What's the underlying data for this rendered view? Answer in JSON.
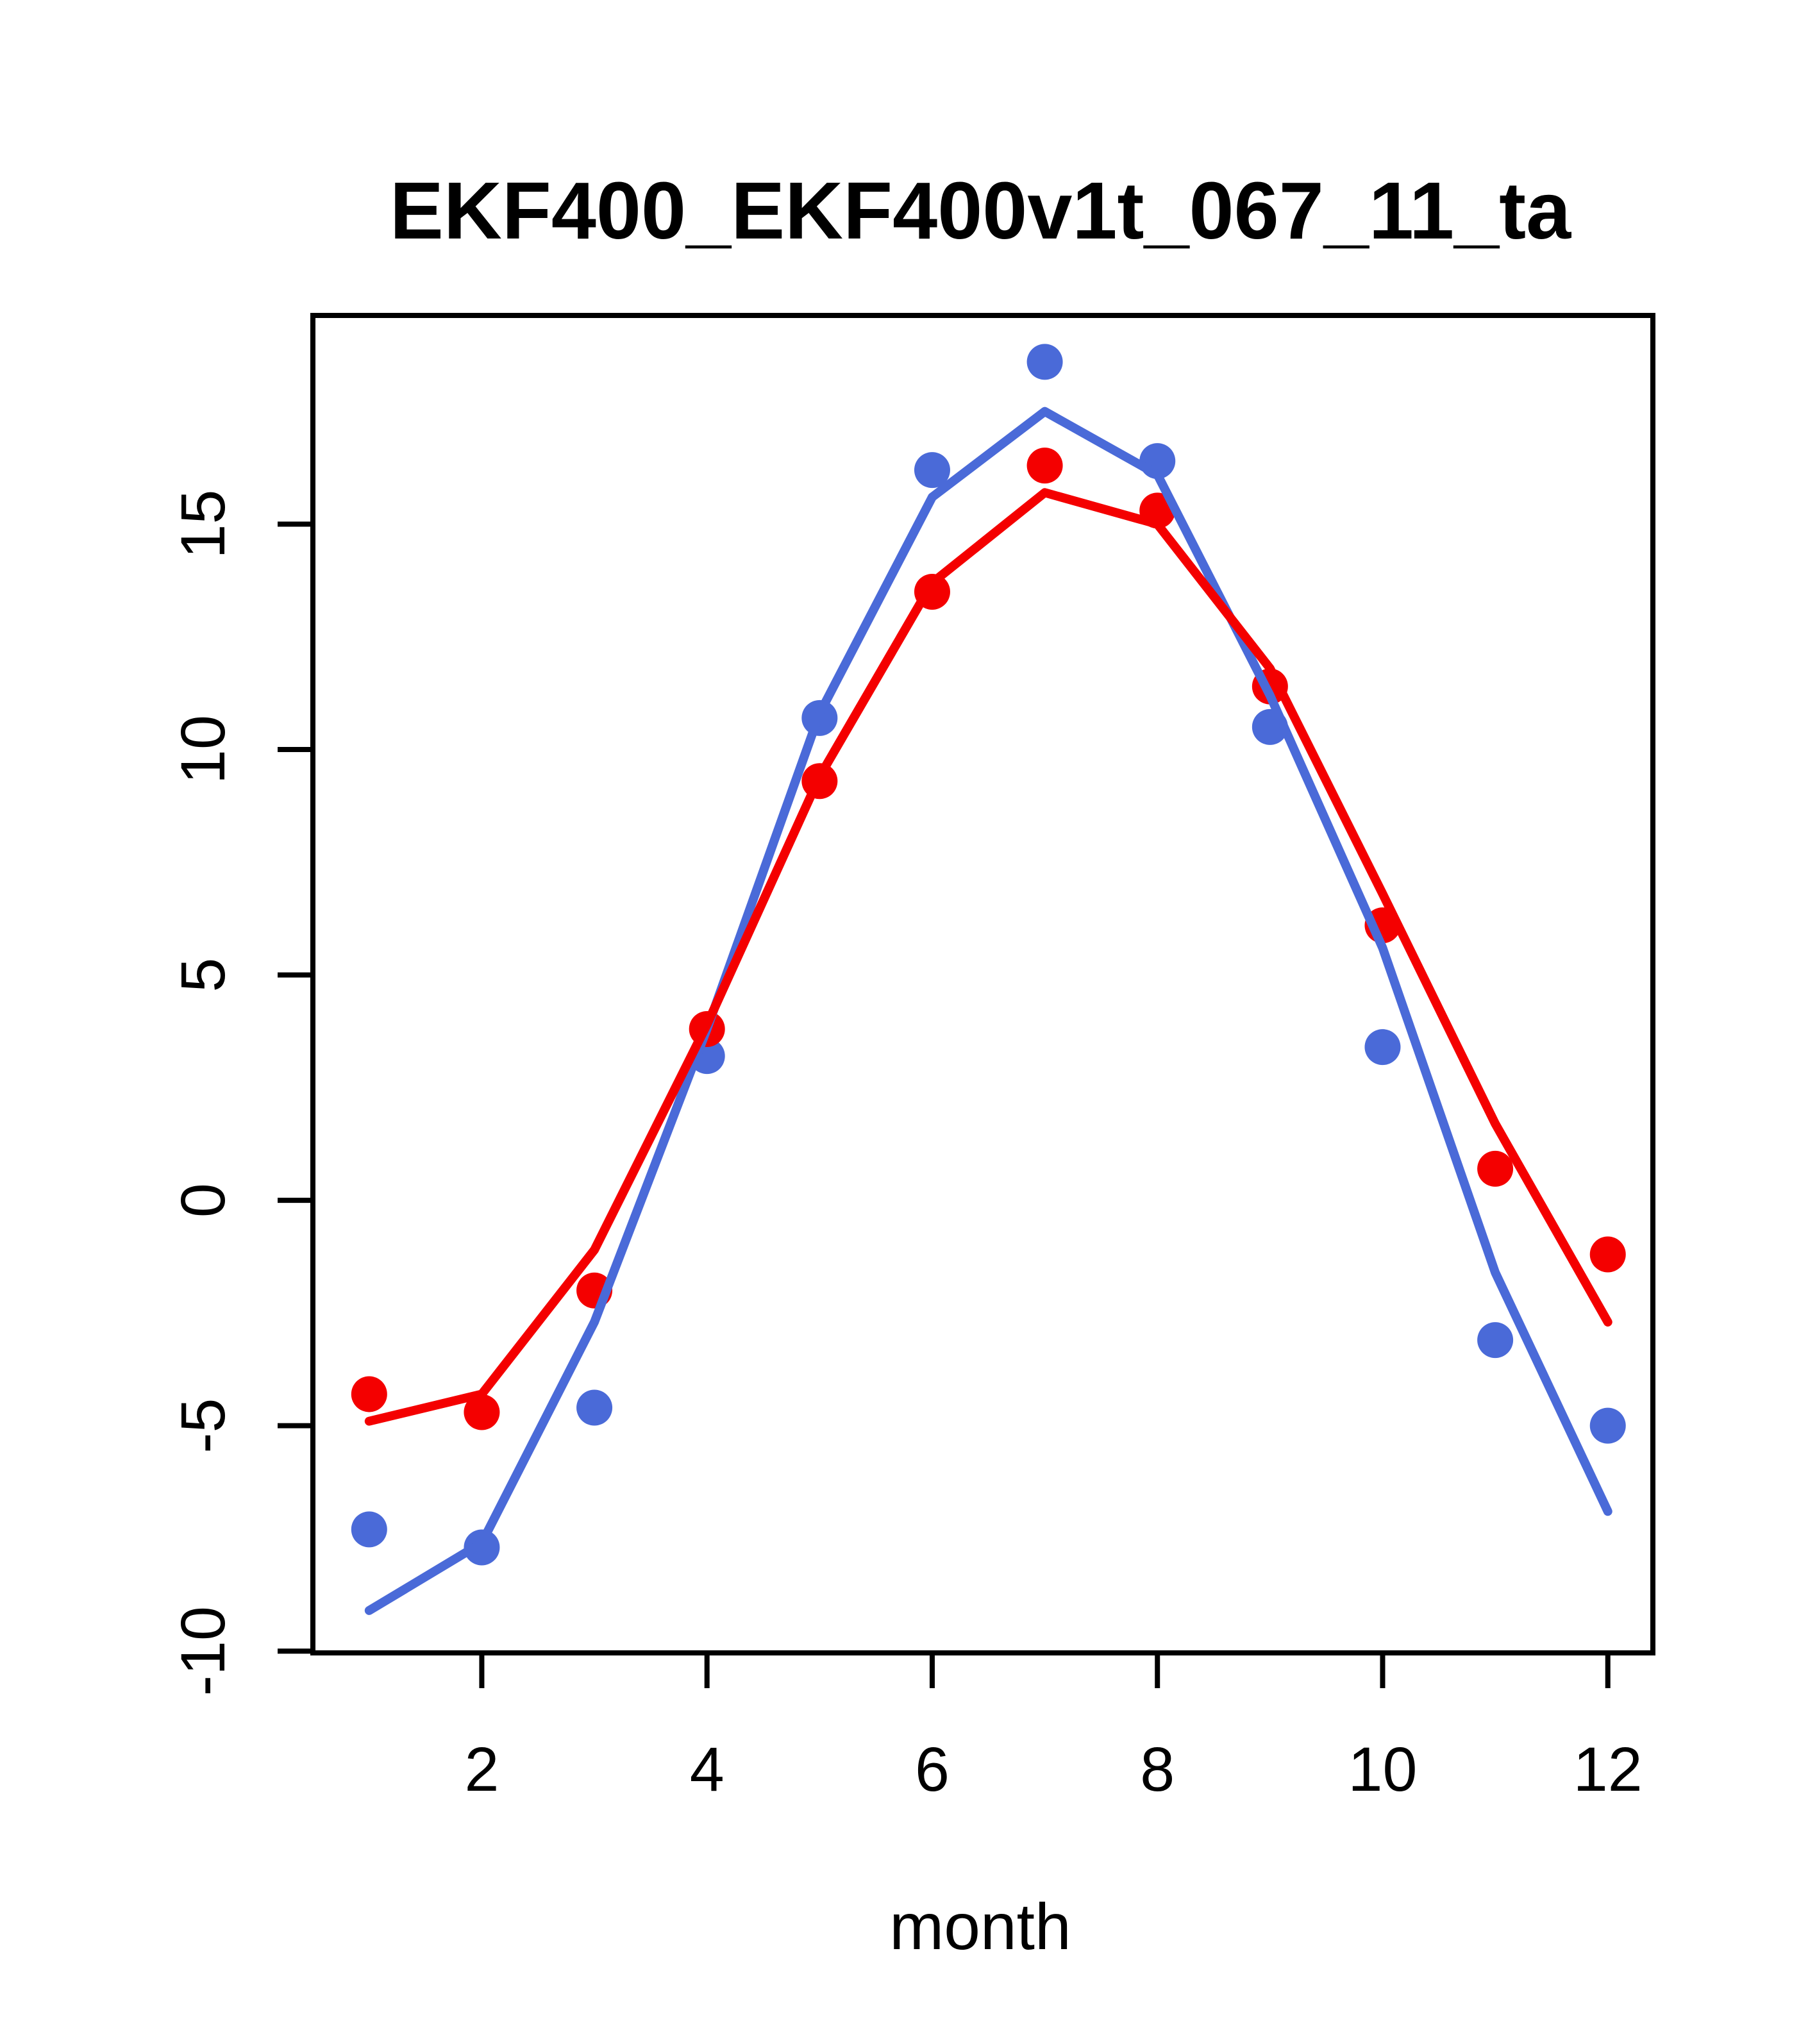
{
  "window": {
    "background": "#ffffff"
  },
  "chart_data": {
    "type": "line",
    "title": "EKF400_EKF400v1t_067_11_ta",
    "xlabel": "month",
    "ylabel": "",
    "x": [
      1,
      2,
      3,
      4,
      5,
      6,
      7,
      8,
      9,
      10,
      11,
      12
    ],
    "series": [
      {
        "name": "blue-points",
        "kind": "points",
        "color": "#4a6ad8",
        "values": [
          -7.3,
          -7.7,
          -4.6,
          3.2,
          10.7,
          16.2,
          18.6,
          16.4,
          10.5,
          3.4,
          -3.1,
          -5.0
        ]
      },
      {
        "name": "red-points",
        "kind": "points",
        "color": "#f40000",
        "values": [
          -4.3,
          -4.7,
          -2.0,
          3.8,
          9.3,
          13.5,
          16.3,
          15.3,
          11.4,
          6.1,
          0.7,
          -1.2
        ]
      },
      {
        "name": "blue-line",
        "kind": "line",
        "color": "#4a6ad8",
        "values": [
          -9.1,
          -7.6,
          -2.7,
          3.8,
          10.8,
          15.6,
          17.5,
          16.1,
          11.2,
          5.6,
          -1.6,
          -6.9
        ]
      },
      {
        "name": "red-line",
        "kind": "line",
        "color": "#f40000",
        "values": [
          -4.9,
          -4.3,
          -1.1,
          3.9,
          9.4,
          13.7,
          15.7,
          15.0,
          11.8,
          6.8,
          1.7,
          -2.7
        ]
      }
    ],
    "xticks": [
      2,
      4,
      6,
      8,
      10,
      12
    ],
    "yticks": [
      -10,
      -5,
      0,
      5,
      10,
      15
    ],
    "xlim": [
      0.5,
      12.4
    ],
    "ylim": [
      -10.04,
      19.63
    ],
    "grid": false,
    "legend_position": "none"
  }
}
